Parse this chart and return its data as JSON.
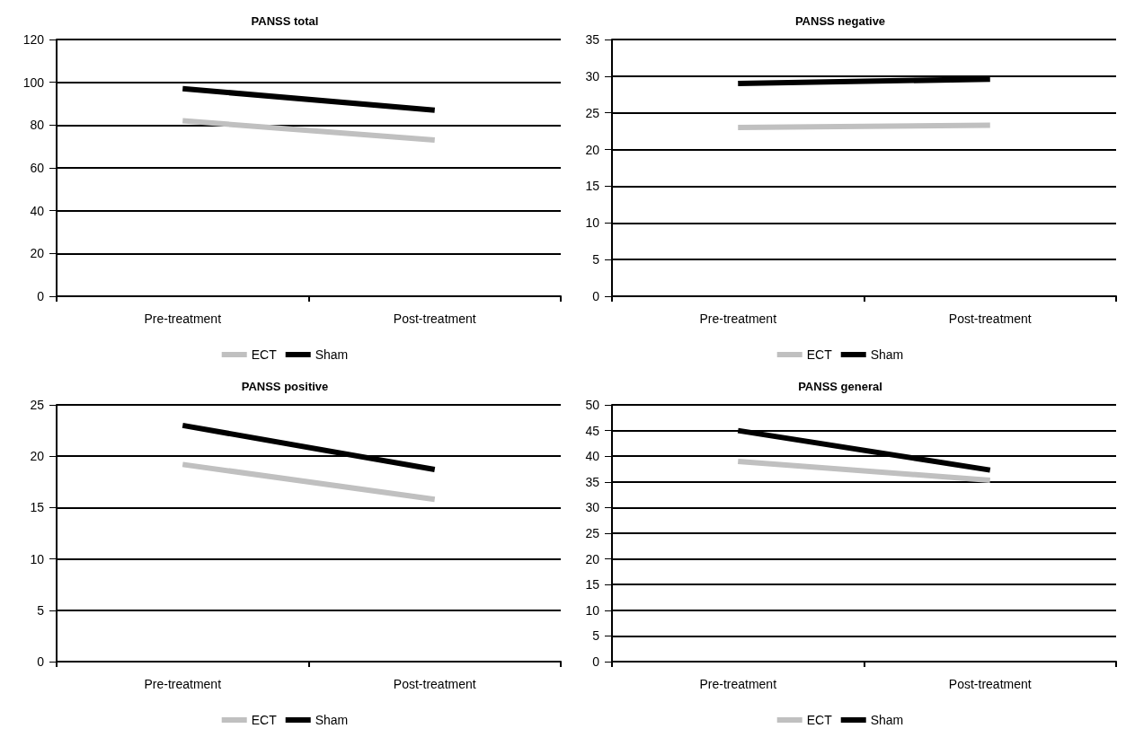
{
  "chart_data": [
    {
      "type": "line",
      "title": "PANSS total",
      "categories": [
        "Pre-treatment",
        "Post-treatment"
      ],
      "series": [
        {
          "name": "ECT",
          "color": "#c0c0c0",
          "values": [
            82,
            73
          ]
        },
        {
          "name": "Sham",
          "color": "#000000",
          "values": [
            97,
            87
          ]
        }
      ],
      "ylim": [
        0,
        120
      ],
      "yticks": [
        0,
        20,
        40,
        60,
        80,
        100,
        120
      ],
      "grid": "y",
      "legend": "bottom",
      "marker": "none",
      "line_style": "solid"
    },
    {
      "type": "line",
      "title": "PANSS negative",
      "categories": [
        "Pre-treatment",
        "Post-treatment"
      ],
      "series": [
        {
          "name": "ECT",
          "color": "#c0c0c0",
          "values": [
            23,
            23.3
          ]
        },
        {
          "name": "Sham",
          "color": "#000000",
          "values": [
            29,
            29.6
          ]
        }
      ],
      "ylim": [
        0,
        35
      ],
      "yticks": [
        0,
        5,
        10,
        15,
        20,
        25,
        30,
        35
      ],
      "grid": "y",
      "legend": "bottom",
      "marker": "none",
      "line_style": "solid"
    },
    {
      "type": "line",
      "title": "PANSS positive",
      "categories": [
        "Pre-treatment",
        "Post-treatment"
      ],
      "series": [
        {
          "name": "ECT",
          "color": "#c0c0c0",
          "values": [
            19.2,
            15.8
          ]
        },
        {
          "name": "Sham",
          "color": "#000000",
          "values": [
            23,
            18.7
          ]
        }
      ],
      "ylim": [
        0,
        25
      ],
      "yticks": [
        0,
        5,
        10,
        15,
        20,
        25
      ],
      "grid": "y",
      "legend": "bottom",
      "marker": "none",
      "line_style": "solid"
    },
    {
      "type": "line",
      "title": "PANSS general",
      "categories": [
        "Pre-treatment",
        "Post-treatment"
      ],
      "series": [
        {
          "name": "ECT",
          "color": "#c0c0c0",
          "values": [
            39,
            35.3
          ]
        },
        {
          "name": "Sham",
          "color": "#000000",
          "values": [
            45,
            37.3
          ]
        }
      ],
      "ylim": [
        0,
        50
      ],
      "yticks": [
        0,
        5,
        10,
        15,
        20,
        25,
        30,
        35,
        40,
        45,
        50
      ],
      "grid": "y",
      "legend": "bottom",
      "marker": "none",
      "line_style": "solid"
    }
  ]
}
